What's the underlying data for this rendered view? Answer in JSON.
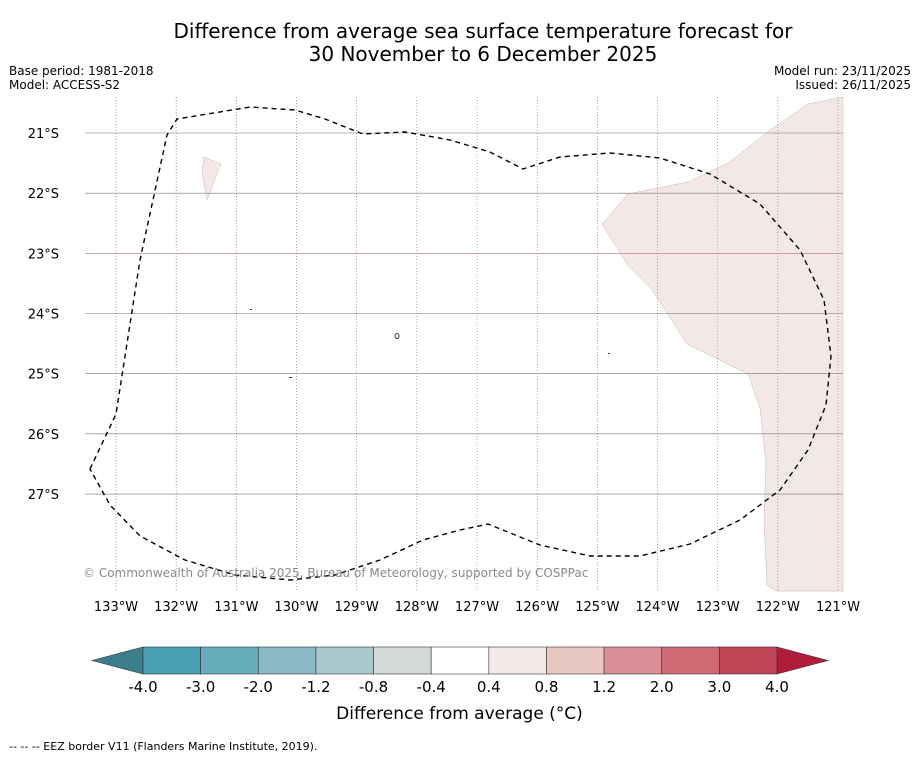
{
  "title": {
    "line1": "Difference from average sea surface temperature forecast for",
    "line2": "30 November to 6 December 2025"
  },
  "meta_left": {
    "base_period": "Base period: 1981-2018",
    "model": "Model: ACCESS-S2"
  },
  "meta_right": {
    "model_run": "Model run: 23/11/2025",
    "issued": "Issued: 26/11/2025"
  },
  "map": {
    "lat_labels": [
      "21°S",
      "22°S",
      "23°S",
      "24°S",
      "25°S",
      "26°S",
      "27°S"
    ],
    "lon_labels": [
      "133°W",
      "132°W",
      "131°W",
      "130°W",
      "129°W",
      "128°W",
      "127°W",
      "126°W",
      "125°W",
      "124°W",
      "123°W",
      "122°W",
      "121°W"
    ],
    "copyright": "© Commonwealth of Australia 2025, Bureau of Meteorology, supported by COSPPac",
    "land_color": "#f4e8e6"
  },
  "colorbar": {
    "ticks": [
      "-4.0",
      "-3.0",
      "-2.0",
      "-1.2",
      "-0.8",
      "-0.4",
      "0.4",
      "0.8",
      "1.2",
      "2.0",
      "3.0",
      "4.0"
    ],
    "colors": [
      "#48a0b2",
      "#68adbb",
      "#8bb9c5",
      "#a9c8cd",
      "#d4d9da",
      "#ffffff",
      "#f4e8e6",
      "#e8c6c2",
      "#d88f96",
      "#cd6a74",
      "#c14556"
    ],
    "extend_low_color": "#3b7f8c",
    "extend_high_color": "#ae1e3a",
    "label": "Difference from average (°C)"
  },
  "footnote": "--  --  -- EEZ border V11 (Flanders Marine Institute, 2019)."
}
